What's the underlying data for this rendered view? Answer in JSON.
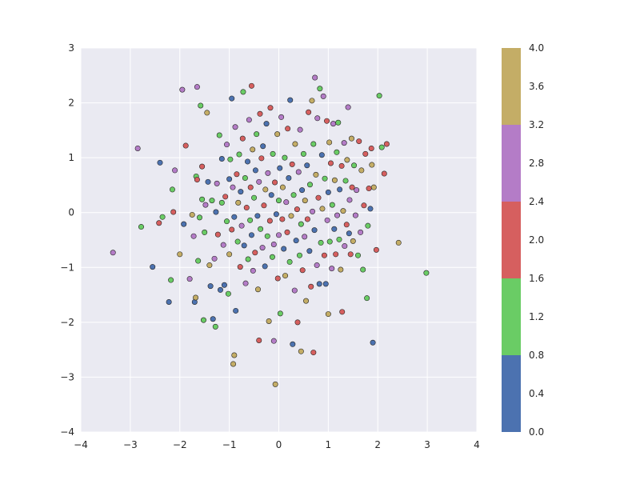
{
  "chart_data": {
    "type": "scatter",
    "title": "",
    "xlabel": "",
    "ylabel": "",
    "xlim": [
      -4,
      4
    ],
    "ylim": [
      -4,
      3
    ],
    "grid": true,
    "xticks": [
      -4,
      -3,
      -2,
      -1,
      0,
      1,
      2,
      3,
      4
    ],
    "xtick_labels": [
      "−4",
      "−3",
      "−2",
      "−1",
      "0",
      "1",
      "2",
      "3",
      "4"
    ],
    "yticks": [
      -4,
      -3,
      -2,
      -1,
      0,
      1,
      2,
      3
    ],
    "ytick_labels": [
      "−4",
      "−3",
      "−2",
      "−1",
      "0",
      "1",
      "2",
      "3"
    ],
    "colorbar": {
      "range": [
        0.0,
        4.0
      ],
      "bins": [
        {
          "from": 0.0,
          "to": 0.8,
          "color": "#4c72b0"
        },
        {
          "from": 0.8,
          "to": 1.6,
          "color": "#6acc65"
        },
        {
          "from": 1.6,
          "to": 2.4,
          "color": "#d65f5f"
        },
        {
          "from": 2.4,
          "to": 3.2,
          "color": "#b47cc7"
        },
        {
          "from": 3.2,
          "to": 4.0,
          "color": "#c4ad66"
        }
      ],
      "ticks": [
        0.0,
        0.4,
        0.8,
        1.2,
        1.6,
        2.0,
        2.4,
        2.8,
        3.2,
        3.6,
        4.0
      ],
      "tick_labels": [
        "0.0",
        "0.4",
        "0.8",
        "1.2",
        "1.6",
        "2.0",
        "2.4",
        "2.8",
        "3.2",
        "3.6",
        "4.0"
      ]
    },
    "points": [
      {
        "x": -3.35,
        "y": -0.73,
        "c": 2.8
      },
      {
        "x": -2.85,
        "y": 1.17,
        "c": 2.8
      },
      {
        "x": -2.78,
        "y": -0.26,
        "c": 1.2
      },
      {
        "x": -2.55,
        "y": -0.99,
        "c": 0.4
      },
      {
        "x": -2.42,
        "y": -0.19,
        "c": 2.0
      },
      {
        "x": -2.4,
        "y": 0.91,
        "c": 0.4
      },
      {
        "x": -2.35,
        "y": -0.08,
        "c": 1.2
      },
      {
        "x": -2.22,
        "y": -1.63,
        "c": 0.4
      },
      {
        "x": -2.18,
        "y": -1.23,
        "c": 1.2
      },
      {
        "x": -2.15,
        "y": 0.42,
        "c": 1.2
      },
      {
        "x": -2.13,
        "y": 0.01,
        "c": 2.0
      },
      {
        "x": -2.1,
        "y": 0.77,
        "c": 2.8
      },
      {
        "x": -2.0,
        "y": -0.76,
        "c": 3.6
      },
      {
        "x": -1.95,
        "y": 2.24,
        "c": 2.8
      },
      {
        "x": -1.92,
        "y": -0.21,
        "c": 0.4
      },
      {
        "x": -1.88,
        "y": 1.22,
        "c": 2.0
      },
      {
        "x": -1.8,
        "y": -1.21,
        "c": 2.8
      },
      {
        "x": -1.75,
        "y": -0.04,
        "c": 3.6
      },
      {
        "x": -1.72,
        "y": -0.43,
        "c": 2.8
      },
      {
        "x": -1.7,
        "y": -1.63,
        "c": 0.4
      },
      {
        "x": -1.68,
        "y": -1.55,
        "c": 3.6
      },
      {
        "x": -1.67,
        "y": 0.66,
        "c": 1.2
      },
      {
        "x": -1.65,
        "y": 2.29,
        "c": 2.8
      },
      {
        "x": -1.65,
        "y": 0.6,
        "c": 2.0
      },
      {
        "x": -1.63,
        "y": -0.88,
        "c": 1.2
      },
      {
        "x": -1.6,
        "y": -0.09,
        "c": 1.2
      },
      {
        "x": -1.58,
        "y": 1.95,
        "c": 1.2
      },
      {
        "x": -1.55,
        "y": 0.24,
        "c": 1.2
      },
      {
        "x": -1.55,
        "y": 0.84,
        "c": 2.0
      },
      {
        "x": -1.52,
        "y": -1.96,
        "c": 1.2
      },
      {
        "x": -1.5,
        "y": -0.36,
        "c": 1.2
      },
      {
        "x": -1.48,
        "y": 0.14,
        "c": 2.8
      },
      {
        "x": -1.45,
        "y": 1.82,
        "c": 3.6
      },
      {
        "x": -1.43,
        "y": 0.56,
        "c": 0.4
      },
      {
        "x": -1.4,
        "y": -0.96,
        "c": 3.6
      },
      {
        "x": -1.38,
        "y": -1.34,
        "c": 0.4
      },
      {
        "x": -1.35,
        "y": 0.22,
        "c": 1.2
      },
      {
        "x": -1.33,
        "y": -1.94,
        "c": 0.4
      },
      {
        "x": -1.3,
        "y": -0.84,
        "c": 2.8
      },
      {
        "x": -1.28,
        "y": -2.08,
        "c": 1.2
      },
      {
        "x": -1.27,
        "y": 0.01,
        "c": 0.4
      },
      {
        "x": -1.25,
        "y": 0.53,
        "c": 2.8
      },
      {
        "x": -1.23,
        "y": -0.4,
        "c": 2.0
      },
      {
        "x": -1.2,
        "y": 1.41,
        "c": 1.2
      },
      {
        "x": -1.18,
        "y": -1.41,
        "c": 0.4
      },
      {
        "x": -1.15,
        "y": 0.18,
        "c": 1.2
      },
      {
        "x": -1.15,
        "y": 0.98,
        "c": 0.4
      },
      {
        "x": -1.12,
        "y": -0.59,
        "c": 2.8
      },
      {
        "x": -1.1,
        "y": -1.32,
        "c": 0.4
      },
      {
        "x": -1.08,
        "y": 0.29,
        "c": 2.0
      },
      {
        "x": -1.05,
        "y": -0.16,
        "c": 1.2
      },
      {
        "x": -1.05,
        "y": 1.24,
        "c": 2.8
      },
      {
        "x": -1.02,
        "y": -1.48,
        "c": 1.2
      },
      {
        "x": -1.0,
        "y": 0.61,
        "c": 0.4
      },
      {
        "x": -1.0,
        "y": -0.76,
        "c": 3.6
      },
      {
        "x": -0.98,
        "y": 0.97,
        "c": 1.2
      },
      {
        "x": -0.95,
        "y": -0.31,
        "c": 2.0
      },
      {
        "x": -0.95,
        "y": 2.08,
        "c": 0.4
      },
      {
        "x": -0.93,
        "y": 0.46,
        "c": 2.8
      },
      {
        "x": -0.92,
        "y": -2.76,
        "c": 3.6
      },
      {
        "x": -0.9,
        "y": -0.08,
        "c": 0.4
      },
      {
        "x": -0.9,
        "y": -2.6,
        "c": 3.6
      },
      {
        "x": -0.88,
        "y": 1.56,
        "c": 2.8
      },
      {
        "x": -0.87,
        "y": -1.79,
        "c": 0.4
      },
      {
        "x": -0.85,
        "y": 0.7,
        "c": 2.0
      },
      {
        "x": -0.83,
        "y": -0.53,
        "c": 1.2
      },
      {
        "x": -0.82,
        "y": 0.18,
        "c": 3.6
      },
      {
        "x": -0.8,
        "y": 1.06,
        "c": 1.2
      },
      {
        "x": -0.78,
        "y": -0.99,
        "c": 2.0
      },
      {
        "x": -0.77,
        "y": 0.38,
        "c": 0.4
      },
      {
        "x": -0.75,
        "y": -0.24,
        "c": 2.8
      },
      {
        "x": -0.73,
        "y": 1.35,
        "c": 2.0
      },
      {
        "x": -0.72,
        "y": 2.2,
        "c": 1.2
      },
      {
        "x": -0.7,
        "y": -0.6,
        "c": 0.4
      },
      {
        "x": -0.68,
        "y": 0.63,
        "c": 1.2
      },
      {
        "x": -0.67,
        "y": -1.29,
        "c": 2.8
      },
      {
        "x": -0.65,
        "y": 0.09,
        "c": 2.0
      },
      {
        "x": -0.63,
        "y": 0.93,
        "c": 0.4
      },
      {
        "x": -0.62,
        "y": -0.85,
        "c": 1.2
      },
      {
        "x": -0.6,
        "y": 1.69,
        "c": 2.8
      },
      {
        "x": -0.58,
        "y": -0.14,
        "c": 1.2
      },
      {
        "x": -0.57,
        "y": 0.46,
        "c": 2.0
      },
      {
        "x": -0.55,
        "y": 2.31,
        "c": 2.0
      },
      {
        "x": -0.55,
        "y": -0.41,
        "c": 0.4
      },
      {
        "x": -0.53,
        "y": 1.15,
        "c": 3.6
      },
      {
        "x": -0.52,
        "y": -1.06,
        "c": 2.8
      },
      {
        "x": -0.5,
        "y": 0.27,
        "c": 1.2
      },
      {
        "x": -0.48,
        "y": -0.73,
        "c": 2.0
      },
      {
        "x": -0.47,
        "y": 0.77,
        "c": 0.4
      },
      {
        "x": -0.45,
        "y": 1.43,
        "c": 1.2
      },
      {
        "x": -0.43,
        "y": -0.06,
        "c": 0.4
      },
      {
        "x": -0.42,
        "y": -1.4,
        "c": 3.6
      },
      {
        "x": -0.4,
        "y": 0.56,
        "c": 2.8
      },
      {
        "x": -0.4,
        "y": -2.33,
        "c": 2.0
      },
      {
        "x": -0.38,
        "y": 1.8,
        "c": 2.0
      },
      {
        "x": -0.37,
        "y": -0.3,
        "c": 1.2
      },
      {
        "x": -0.35,
        "y": 0.99,
        "c": 2.0
      },
      {
        "x": -0.33,
        "y": -0.64,
        "c": 2.8
      },
      {
        "x": -0.32,
        "y": 1.21,
        "c": 0.4
      },
      {
        "x": -0.3,
        "y": 0.13,
        "c": 2.0
      },
      {
        "x": -0.28,
        "y": -0.98,
        "c": 0.4
      },
      {
        "x": -0.27,
        "y": 0.42,
        "c": 3.6
      },
      {
        "x": -0.25,
        "y": 1.62,
        "c": 0.4
      },
      {
        "x": -0.23,
        "y": -0.43,
        "c": 1.2
      },
      {
        "x": -0.22,
        "y": 0.72,
        "c": 2.8
      },
      {
        "x": -0.2,
        "y": -1.98,
        "c": 3.6
      },
      {
        "x": -0.18,
        "y": -0.15,
        "c": 2.0
      },
      {
        "x": -0.17,
        "y": 1.91,
        "c": 2.0
      },
      {
        "x": -0.15,
        "y": 0.32,
        "c": 0.4
      },
      {
        "x": -0.13,
        "y": -0.81,
        "c": 1.2
      },
      {
        "x": -0.12,
        "y": 1.07,
        "c": 1.2
      },
      {
        "x": -0.1,
        "y": -0.58,
        "c": 2.8
      },
      {
        "x": -0.1,
        "y": -2.34,
        "c": 2.8
      },
      {
        "x": -0.08,
        "y": 0.55,
        "c": 2.0
      },
      {
        "x": -0.07,
        "y": -3.13,
        "c": 3.6
      },
      {
        "x": -0.05,
        "y": -0.03,
        "c": 0.4
      },
      {
        "x": -0.03,
        "y": 1.43,
        "c": 3.6
      },
      {
        "x": -0.02,
        "y": -1.2,
        "c": 2.0
      },
      {
        "x": 0.0,
        "y": 0.22,
        "c": 1.2
      },
      {
        "x": 0.0,
        "y": -0.41,
        "c": 2.8
      },
      {
        "x": 0.02,
        "y": 0.81,
        "c": 0.4
      },
      {
        "x": 0.03,
        "y": -1.84,
        "c": 1.2
      },
      {
        "x": 0.05,
        "y": 1.74,
        "c": 2.8
      },
      {
        "x": 0.07,
        "y": -0.12,
        "c": 2.0
      },
      {
        "x": 0.08,
        "y": 0.46,
        "c": 3.6
      },
      {
        "x": 0.1,
        "y": -0.66,
        "c": 0.4
      },
      {
        "x": 0.12,
        "y": 1.0,
        "c": 1.2
      },
      {
        "x": 0.13,
        "y": -1.15,
        "c": 3.6
      },
      {
        "x": 0.15,
        "y": 0.19,
        "c": 2.8
      },
      {
        "x": 0.17,
        "y": -0.36,
        "c": 2.0
      },
      {
        "x": 0.18,
        "y": 1.53,
        "c": 2.0
      },
      {
        "x": 0.2,
        "y": 0.63,
        "c": 0.4
      },
      {
        "x": 0.22,
        "y": -0.9,
        "c": 1.2
      },
      {
        "x": 0.23,
        "y": 2.05,
        "c": 0.4
      },
      {
        "x": 0.25,
        "y": -0.06,
        "c": 3.6
      },
      {
        "x": 0.27,
        "y": 0.88,
        "c": 2.0
      },
      {
        "x": 0.28,
        "y": -2.4,
        "c": 0.4
      },
      {
        "x": 0.3,
        "y": 0.32,
        "c": 1.2
      },
      {
        "x": 0.32,
        "y": -1.42,
        "c": 2.8
      },
      {
        "x": 0.33,
        "y": 1.25,
        "c": 3.6
      },
      {
        "x": 0.35,
        "y": -0.51,
        "c": 0.4
      },
      {
        "x": 0.37,
        "y": 0.06,
        "c": 2.0
      },
      {
        "x": 0.38,
        "y": -2.0,
        "c": 2.0
      },
      {
        "x": 0.4,
        "y": 0.74,
        "c": 2.8
      },
      {
        "x": 0.42,
        "y": -0.78,
        "c": 1.2
      },
      {
        "x": 0.43,
        "y": 1.51,
        "c": 2.8
      },
      {
        "x": 0.45,
        "y": -2.53,
        "c": 3.6
      },
      {
        "x": 0.45,
        "y": -0.21,
        "c": 1.2
      },
      {
        "x": 0.47,
        "y": 0.41,
        "c": 0.4
      },
      {
        "x": 0.48,
        "y": -1.05,
        "c": 2.0
      },
      {
        "x": 0.5,
        "y": 1.07,
        "c": 1.2
      },
      {
        "x": 0.52,
        "y": -0.44,
        "c": 2.8
      },
      {
        "x": 0.53,
        "y": 0.22,
        "c": 3.6
      },
      {
        "x": 0.55,
        "y": -1.61,
        "c": 3.6
      },
      {
        "x": 0.57,
        "y": 0.86,
        "c": 0.4
      },
      {
        "x": 0.58,
        "y": -0.12,
        "c": 2.0
      },
      {
        "x": 0.6,
        "y": 1.83,
        "c": 2.0
      },
      {
        "x": 0.62,
        "y": -0.7,
        "c": 0.4
      },
      {
        "x": 0.63,
        "y": 0.51,
        "c": 1.2
      },
      {
        "x": 0.65,
        "y": -1.35,
        "c": 2.0
      },
      {
        "x": 0.67,
        "y": 2.04,
        "c": 3.6
      },
      {
        "x": 0.68,
        "y": 0.02,
        "c": 2.8
      },
      {
        "x": 0.7,
        "y": -2.55,
        "c": 2.0
      },
      {
        "x": 0.7,
        "y": 1.25,
        "c": 1.2
      },
      {
        "x": 0.72,
        "y": -0.32,
        "c": 0.4
      },
      {
        "x": 0.73,
        "y": 2.46,
        "c": 2.8
      },
      {
        "x": 0.75,
        "y": 0.69,
        "c": 3.6
      },
      {
        "x": 0.77,
        "y": -0.96,
        "c": 2.8
      },
      {
        "x": 0.78,
        "y": 1.72,
        "c": 2.8
      },
      {
        "x": 0.8,
        "y": 0.27,
        "c": 2.0
      },
      {
        "x": 0.82,
        "y": -1.3,
        "c": 0.4
      },
      {
        "x": 0.83,
        "y": 2.26,
        "c": 1.2
      },
      {
        "x": 0.85,
        "y": -0.55,
        "c": 1.2
      },
      {
        "x": 0.87,
        "y": 1.05,
        "c": 0.4
      },
      {
        "x": 0.88,
        "y": 0.07,
        "c": 3.6
      },
      {
        "x": 0.9,
        "y": 2.12,
        "c": 2.8
      },
      {
        "x": 0.92,
        "y": -0.78,
        "c": 2.0
      },
      {
        "x": 0.93,
        "y": 0.62,
        "c": 1.2
      },
      {
        "x": 0.95,
        "y": -1.3,
        "c": 0.4
      },
      {
        "x": 0.97,
        "y": 1.67,
        "c": 2.0
      },
      {
        "x": 0.98,
        "y": -0.14,
        "c": 2.8
      },
      {
        "x": 1.0,
        "y": -1.85,
        "c": 3.6
      },
      {
        "x": 1.0,
        "y": 0.37,
        "c": 0.4
      },
      {
        "x": 1.02,
        "y": 1.28,
        "c": 3.6
      },
      {
        "x": 1.03,
        "y": -0.53,
        "c": 1.2
      },
      {
        "x": 1.05,
        "y": 0.9,
        "c": 2.0
      },
      {
        "x": 1.07,
        "y": -1.02,
        "c": 2.8
      },
      {
        "x": 1.08,
        "y": 0.14,
        "c": 1.2
      },
      {
        "x": 1.1,
        "y": 1.62,
        "c": 2.8
      },
      {
        "x": 1.12,
        "y": -0.3,
        "c": 0.4
      },
      {
        "x": 1.13,
        "y": 0.59,
        "c": 3.6
      },
      {
        "x": 1.15,
        "y": -0.76,
        "c": 2.0
      },
      {
        "x": 1.17,
        "y": 1.1,
        "c": 1.2
      },
      {
        "x": 1.18,
        "y": -0.05,
        "c": 2.8
      },
      {
        "x": 1.2,
        "y": 1.64,
        "c": 1.2
      },
      {
        "x": 1.22,
        "y": -0.49,
        "c": 1.2
      },
      {
        "x": 1.23,
        "y": 0.42,
        "c": 0.4
      },
      {
        "x": 1.25,
        "y": -1.04,
        "c": 3.6
      },
      {
        "x": 1.27,
        "y": 0.85,
        "c": 2.0
      },
      {
        "x": 1.28,
        "y": -1.81,
        "c": 2.0
      },
      {
        "x": 1.3,
        "y": 0.03,
        "c": 3.6
      },
      {
        "x": 1.32,
        "y": 1.27,
        "c": 2.8
      },
      {
        "x": 1.33,
        "y": -0.61,
        "c": 2.8
      },
      {
        "x": 1.35,
        "y": 0.58,
        "c": 1.2
      },
      {
        "x": 1.37,
        "y": -0.22,
        "c": 2.0
      },
      {
        "x": 1.38,
        "y": 0.96,
        "c": 3.6
      },
      {
        "x": 1.4,
        "y": 1.92,
        "c": 2.8
      },
      {
        "x": 1.42,
        "y": -0.38,
        "c": 0.4
      },
      {
        "x": 1.43,
        "y": 0.23,
        "c": 2.8
      },
      {
        "x": 1.45,
        "y": -0.76,
        "c": 2.0
      },
      {
        "x": 1.47,
        "y": 1.35,
        "c": 3.6
      },
      {
        "x": 1.48,
        "y": 0.46,
        "c": 2.0
      },
      {
        "x": 1.5,
        "y": -0.52,
        "c": 3.6
      },
      {
        "x": 1.52,
        "y": 0.86,
        "c": 1.2
      },
      {
        "x": 1.55,
        "y": -0.05,
        "c": 2.8
      },
      {
        "x": 1.57,
        "y": 0.41,
        "c": 2.8
      },
      {
        "x": 1.6,
        "y": -0.78,
        "c": 1.2
      },
      {
        "x": 1.62,
        "y": 1.3,
        "c": 2.0
      },
      {
        "x": 1.65,
        "y": -0.36,
        "c": 2.8
      },
      {
        "x": 1.67,
        "y": 0.77,
        "c": 3.6
      },
      {
        "x": 1.7,
        "y": -1.04,
        "c": 1.2
      },
      {
        "x": 1.72,
        "y": 0.13,
        "c": 2.0
      },
      {
        "x": 1.75,
        "y": 1.07,
        "c": 2.0
      },
      {
        "x": 1.78,
        "y": -1.56,
        "c": 1.2
      },
      {
        "x": 1.8,
        "y": -0.24,
        "c": 1.2
      },
      {
        "x": 1.82,
        "y": 0.44,
        "c": 2.0
      },
      {
        "x": 1.85,
        "y": 0.07,
        "c": 0.4
      },
      {
        "x": 1.87,
        "y": 1.17,
        "c": 2.0
      },
      {
        "x": 1.88,
        "y": 0.87,
        "c": 3.6
      },
      {
        "x": 1.9,
        "y": -2.37,
        "c": 0.4
      },
      {
        "x": 1.92,
        "y": 0.46,
        "c": 3.6
      },
      {
        "x": 1.97,
        "y": -0.68,
        "c": 2.0
      },
      {
        "x": 2.03,
        "y": 2.13,
        "c": 1.2
      },
      {
        "x": 2.08,
        "y": 1.19,
        "c": 1.2
      },
      {
        "x": 2.13,
        "y": 0.71,
        "c": 2.0
      },
      {
        "x": 2.18,
        "y": 1.25,
        "c": 2.0
      },
      {
        "x": 2.42,
        "y": -0.55,
        "c": 3.6
      },
      {
        "x": 2.98,
        "y": -1.1,
        "c": 1.2
      }
    ]
  }
}
